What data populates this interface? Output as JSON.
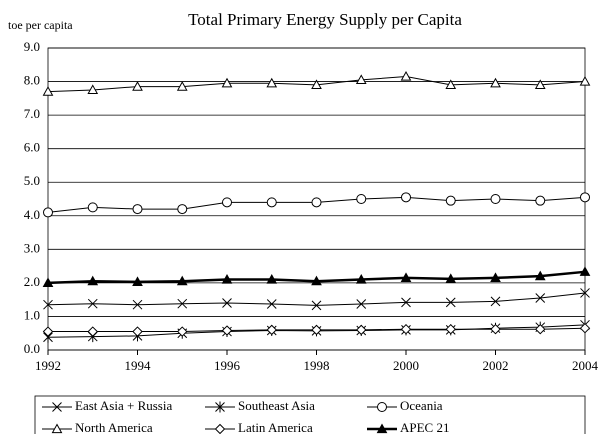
{
  "chart_data": {
    "type": "line",
    "title": "Total Primary Energy Supply per Capita",
    "y_label": "toe per capita",
    "x": [
      1992,
      1993,
      1994,
      1995,
      1996,
      1997,
      1998,
      1999,
      2000,
      2001,
      2002,
      2003,
      2004
    ],
    "xlim": [
      1992,
      2004
    ],
    "xticks": [
      1992,
      1994,
      1996,
      1998,
      2000,
      2002,
      2004
    ],
    "ylim": [
      0,
      9
    ],
    "yticks": [
      {
        "value": 0,
        "label": "0.0"
      },
      {
        "value": 1,
        "label": "1.0"
      },
      {
        "value": 2,
        "label": "2.0"
      },
      {
        "value": 3,
        "label": "3.0"
      },
      {
        "value": 4,
        "label": "4.0"
      },
      {
        "value": 5,
        "label": "5.0"
      },
      {
        "value": 6,
        "label": "6.0"
      },
      {
        "value": 7,
        "label": "7.0"
      },
      {
        "value": 8,
        "label": "8.0"
      },
      {
        "value": 9,
        "label": "9.0"
      }
    ],
    "grid": true,
    "legend": "bottom",
    "series": [
      {
        "name": "East Asia + Russia",
        "color": "#000000",
        "marker": "x",
        "values": [
          1.35,
          1.38,
          1.35,
          1.38,
          1.4,
          1.37,
          1.33,
          1.37,
          1.42,
          1.42,
          1.45,
          1.55,
          1.7
        ]
      },
      {
        "name": "Southeast Asia",
        "color": "#000000",
        "marker": "asterisk",
        "values": [
          0.38,
          0.4,
          0.42,
          0.5,
          0.55,
          0.58,
          0.57,
          0.58,
          0.6,
          0.6,
          0.65,
          0.68,
          0.75
        ]
      },
      {
        "name": "Oceania",
        "color": "#000000",
        "marker": "circle",
        "values": [
          4.1,
          4.25,
          4.2,
          4.2,
          4.4,
          4.4,
          4.4,
          4.5,
          4.55,
          4.45,
          4.5,
          4.45,
          4.55
        ]
      },
      {
        "name": "North America",
        "color": "#000000",
        "marker": "triangle",
        "values": [
          7.7,
          7.75,
          7.85,
          7.85,
          7.95,
          7.95,
          7.9,
          8.05,
          8.15,
          7.9,
          7.95,
          7.9,
          8.0
        ]
      },
      {
        "name": "Latin America",
        "color": "#000000",
        "marker": "diamond",
        "values": [
          0.55,
          0.55,
          0.55,
          0.55,
          0.58,
          0.6,
          0.6,
          0.6,
          0.62,
          0.62,
          0.62,
          0.62,
          0.65
        ]
      },
      {
        "name": "APEC 21",
        "color": "#000000",
        "marker": "filled-triangle",
        "values": [
          2.0,
          2.05,
          2.03,
          2.05,
          2.1,
          2.1,
          2.05,
          2.1,
          2.15,
          2.12,
          2.15,
          2.2,
          2.33
        ]
      }
    ]
  }
}
